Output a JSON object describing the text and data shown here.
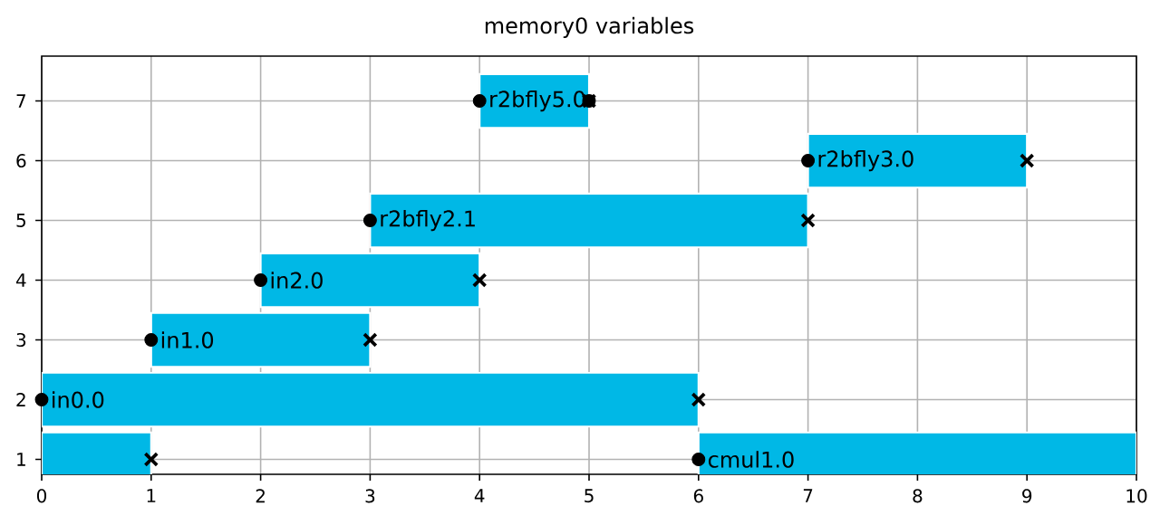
{
  "chart_data": {
    "type": "bar",
    "orientation": "horizontal",
    "title": "memory0 variables",
    "categories": [
      "7",
      "6",
      "5",
      "4",
      "3",
      "2",
      "1"
    ],
    "series": [
      {
        "color": "#00b8e6",
        "values": [
          1,
          2,
          4,
          2,
          2,
          6,
          1
        ],
        "base": [
          4,
          7,
          3,
          2,
          1,
          0,
          0
        ]
      },
      {
        "color": "#00b8e6",
        "values": [
          null,
          null,
          null,
          null,
          null,
          null,
          4
        ],
        "base": [
          null,
          null,
          null,
          null,
          null,
          null,
          6
        ]
      },
      {
        "type": "scatter",
        "marker": "circle",
        "color": "#000000",
        "x": [
          "2",
          "3",
          "4",
          "5",
          "7",
          "6",
          "1",
          "7"
        ],
        "values": [
          0,
          1,
          2,
          3,
          4,
          7,
          6,
          5
        ]
      },
      {
        "type": "scatter",
        "marker": "cross",
        "color": "#000000",
        "x": [
          "1",
          "2",
          "3",
          "4",
          "5",
          "7",
          "6"
        ],
        "values": [
          1,
          6,
          3,
          4,
          7,
          5,
          9
        ]
      }
    ],
    "annotations": [
      {
        "text": "in0.0",
        "x": 0,
        "y": "2"
      },
      {
        "text": "in1.0",
        "x": 1,
        "y": "3"
      },
      {
        "text": "in2.0",
        "x": 2,
        "y": "4"
      },
      {
        "text": "r2bfly2.1",
        "x": 3,
        "y": "5"
      },
      {
        "text": "r2bfly5.0",
        "x": 4,
        "y": "7"
      },
      {
        "text": "r2bfly3.0",
        "x": 7,
        "y": "6"
      },
      {
        "text": "cmul1.0",
        "x": 6,
        "y": "1"
      }
    ],
    "xlim": [
      0,
      10
    ],
    "xticks": [
      0,
      1,
      2,
      3,
      4,
      5,
      6,
      7,
      8,
      9,
      10
    ],
    "grid": true
  }
}
